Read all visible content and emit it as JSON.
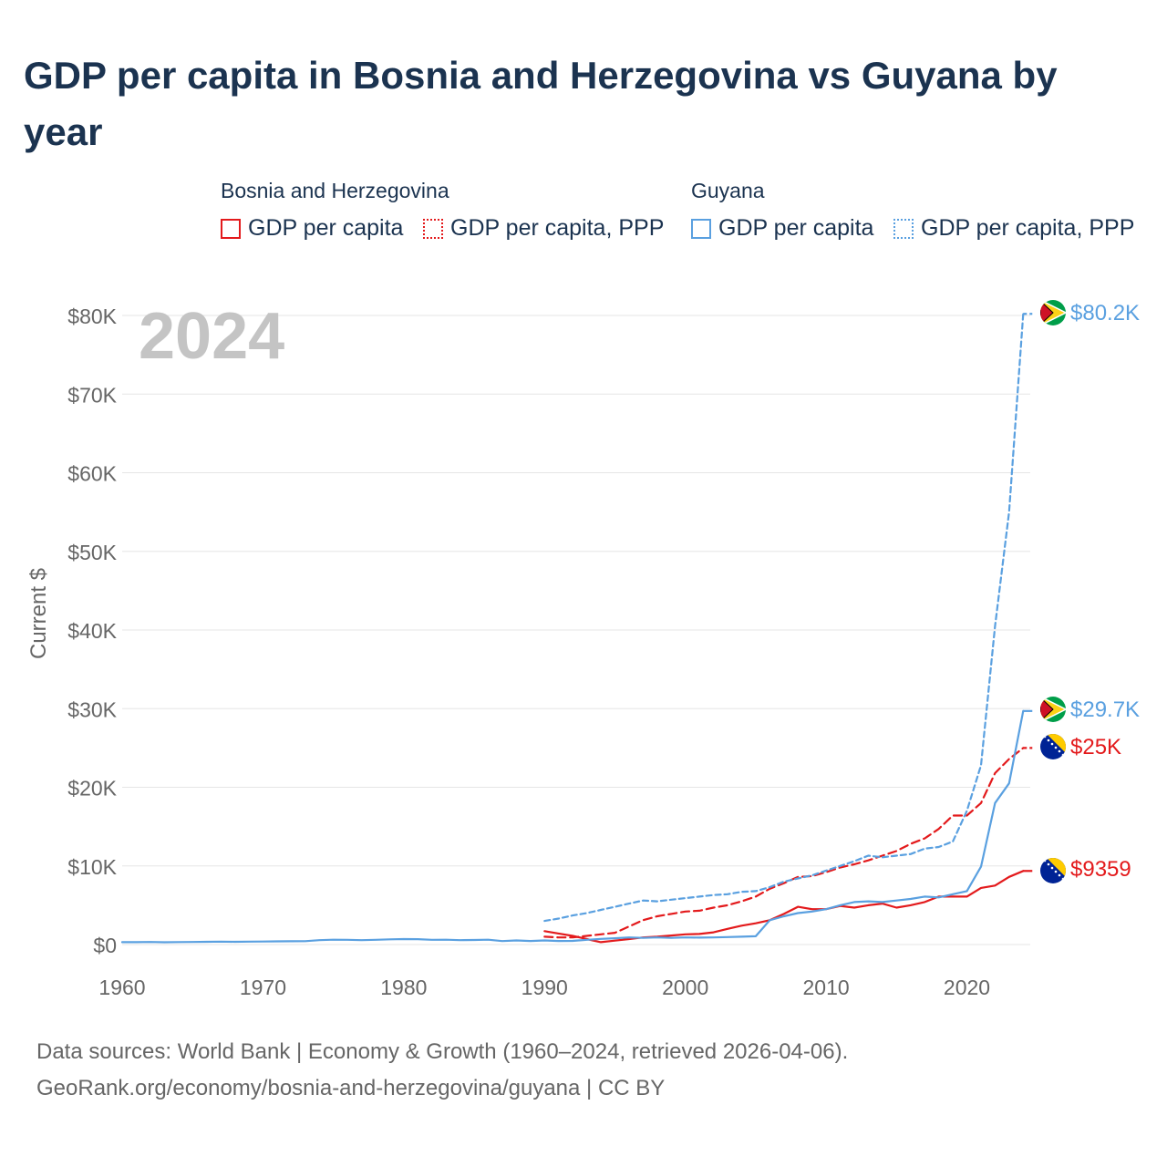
{
  "title": "GDP per capita in Bosnia and Herzegovina vs Guyana by year",
  "legend": {
    "groups": [
      {
        "name": "Bosnia and Herzegovina",
        "color": "#e31a1c",
        "items": [
          "GDP per capita",
          "GDP per capita, PPP"
        ]
      },
      {
        "name": "Guyana",
        "color": "#5aa0e0",
        "items": [
          "GDP per capita",
          "GDP per capita, PPP"
        ]
      }
    ]
  },
  "year_watermark": "2024",
  "chart_data": {
    "type": "line",
    "title": "GDP per capita in Bosnia and Herzegovina vs Guyana by year",
    "xlabel": "",
    "ylabel": "Current $",
    "xlim": [
      1960,
      2024.5
    ],
    "ylim": [
      0,
      80000
    ],
    "x_ticks": [
      1960,
      1970,
      1980,
      1990,
      2000,
      2010,
      2020
    ],
    "x_tick_labels": [
      "1960",
      "1970",
      "1980",
      "1990",
      "2000",
      "2010",
      "2020"
    ],
    "y_ticks": [
      0,
      10000,
      20000,
      30000,
      40000,
      50000,
      60000,
      70000,
      80000
    ],
    "y_tick_labels": [
      "$0",
      "$10K",
      "$20K",
      "$30K",
      "$40K",
      "$50K",
      "$60K",
      "$70K",
      "$80K"
    ],
    "grid": true,
    "series": [
      {
        "name": "Bosnia and Herzegovina — GDP per capita",
        "color": "#e31a1c",
        "dash": "solid",
        "x": [
          1990,
          1991,
          1992,
          1993,
          1994,
          1995,
          1996,
          1997,
          1998,
          1999,
          2000,
          2001,
          2002,
          2003,
          2004,
          2005,
          2006,
          2007,
          2008,
          2009,
          2010,
          2011,
          2012,
          2013,
          2014,
          2015,
          2016,
          2017,
          2018,
          2019,
          2020,
          2021,
          2022,
          2023,
          2024
        ],
        "y": [
          1700,
          1400,
          1100,
          700,
          300,
          500,
          700,
          900,
          1000,
          1150,
          1300,
          1350,
          1550,
          2000,
          2400,
          2700,
          3100,
          3900,
          4800,
          4500,
          4500,
          4900,
          4700,
          5000,
          5200,
          4700,
          5000,
          5400,
          6100,
          6100,
          6100,
          7200,
          7500,
          8600,
          9359
        ]
      },
      {
        "name": "Bosnia and Herzegovina — GDP per capita, PPP",
        "color": "#e31a1c",
        "dash": "dash",
        "x": [
          1990,
          1991,
          1992,
          1993,
          1994,
          1995,
          1996,
          1997,
          1998,
          1999,
          2000,
          2001,
          2002,
          2003,
          2004,
          2005,
          2006,
          2007,
          2008,
          2009,
          2010,
          2011,
          2012,
          2013,
          2014,
          2015,
          2016,
          2017,
          2018,
          2019,
          2020,
          2021,
          2022,
          2023,
          2024
        ],
        "y": [
          1000,
          900,
          900,
          1100,
          1300,
          1500,
          2300,
          3100,
          3600,
          3900,
          4200,
          4300,
          4700,
          5000,
          5500,
          6100,
          7100,
          7800,
          8600,
          8700,
          9200,
          9800,
          10200,
          10700,
          11300,
          11900,
          12800,
          13500,
          14700,
          16400,
          16400,
          18000,
          21800,
          23600,
          25000
        ]
      },
      {
        "name": "Guyana — GDP per capita",
        "color": "#5aa0e0",
        "dash": "solid",
        "x": [
          1960,
          1961,
          1962,
          1963,
          1964,
          1965,
          1966,
          1967,
          1968,
          1969,
          1970,
          1971,
          1972,
          1973,
          1974,
          1975,
          1976,
          1977,
          1978,
          1979,
          1980,
          1981,
          1982,
          1983,
          1984,
          1985,
          1986,
          1987,
          1988,
          1989,
          1990,
          1991,
          1992,
          1993,
          1994,
          1995,
          1996,
          1997,
          1998,
          1999,
          2000,
          2001,
          2002,
          2003,
          2004,
          2005,
          2006,
          2007,
          2008,
          2009,
          2010,
          2011,
          2012,
          2013,
          2014,
          2015,
          2016,
          2017,
          2018,
          2019,
          2020,
          2021,
          2022,
          2023,
          2024
        ],
        "y": [
          300,
          300,
          320,
          290,
          310,
          330,
          350,
          370,
          350,
          370,
          380,
          400,
          420,
          430,
          560,
          620,
          600,
          560,
          600,
          660,
          700,
          680,
          600,
          620,
          560,
          580,
          620,
          440,
          520,
          450,
          520,
          450,
          460,
          600,
          720,
          800,
          900,
          850,
          900,
          850,
          900,
          880,
          900,
          950,
          1000,
          1050,
          3100,
          3600,
          4000,
          4200,
          4500,
          5000,
          5400,
          5500,
          5400,
          5600,
          5800,
          6100,
          6000,
          6400,
          6800,
          9900,
          18000,
          20500,
          29700
        ]
      },
      {
        "name": "Guyana — GDP per capita, PPP",
        "color": "#5aa0e0",
        "dash": "dot",
        "x": [
          1990,
          1991,
          1992,
          1993,
          1994,
          1995,
          1996,
          1997,
          1998,
          1999,
          2000,
          2001,
          2002,
          2003,
          2004,
          2005,
          2006,
          2007,
          2008,
          2009,
          2010,
          2011,
          2012,
          2013,
          2014,
          2015,
          2016,
          2017,
          2018,
          2019,
          2020,
          2021,
          2022,
          2023,
          2024
        ],
        "y": [
          3000,
          3300,
          3700,
          4000,
          4400,
          4800,
          5200,
          5600,
          5500,
          5700,
          5900,
          6100,
          6300,
          6400,
          6700,
          6800,
          7300,
          8000,
          8400,
          8800,
          9400,
          10000,
          10600,
          11300,
          11100,
          11300,
          11500,
          12200,
          12400,
          13100,
          17000,
          22800,
          40500,
          55000,
          80200
        ]
      }
    ],
    "end_labels": [
      {
        "country": "Guyana",
        "text": "$80.2K",
        "value": 80200,
        "color": "#5aa0e0"
      },
      {
        "country": "Guyana",
        "text": "$29.7K",
        "value": 29700,
        "color": "#5aa0e0"
      },
      {
        "country": "Bosnia and Herzegovina",
        "text": "$25K",
        "value": 25000,
        "color": "#e31a1c"
      },
      {
        "country": "Bosnia and Herzegovina",
        "text": "$9359",
        "value": 9359,
        "color": "#e31a1c"
      }
    ]
  },
  "footer": {
    "line1": "Data sources: World Bank | Economy & Growth (1960–2024, retrieved 2026-04-06).",
    "line2": "GeoRank.org/economy/bosnia-and-herzegovina/guyana | CC BY"
  }
}
